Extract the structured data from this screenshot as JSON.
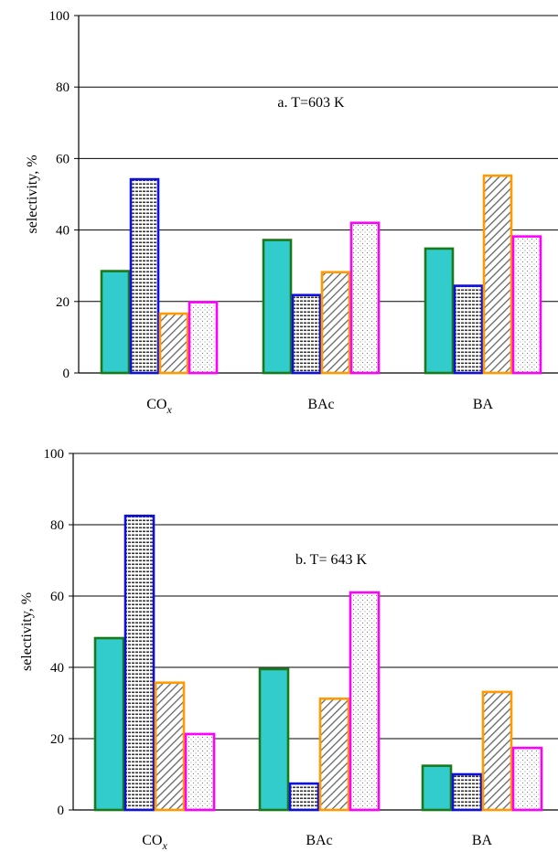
{
  "chart_data": [
    {
      "type": "bar",
      "annotation": "a.  T=603 K",
      "ylabel": "selectivity, %",
      "ylim": [
        0,
        100
      ],
      "yticks": [
        0,
        20,
        40,
        60,
        80,
        100
      ],
      "grid": true,
      "categories": [
        {
          "label": "CO",
          "sub": "x"
        },
        {
          "label": "BAc",
          "sub": ""
        },
        {
          "label": "BA",
          "sub": ""
        }
      ],
      "series": [
        {
          "values": [
            28.5,
            37.2,
            34.8
          ]
        },
        {
          "values": [
            54.2,
            21.8,
            24.4
          ]
        },
        {
          "values": [
            16.6,
            28.2,
            55.2
          ]
        },
        {
          "values": [
            19.8,
            42.0,
            38.2
          ]
        }
      ]
    },
    {
      "type": "bar",
      "annotation": "b. T= 643 K",
      "ylabel": "selectivity, %",
      "ylim": [
        0,
        100
      ],
      "yticks": [
        0,
        20,
        40,
        60,
        80,
        100
      ],
      "grid": true,
      "categories": [
        {
          "label": "CO",
          "sub": "x"
        },
        {
          "label": "BAc",
          "sub": ""
        },
        {
          "label": "BA",
          "sub": ""
        }
      ],
      "series": [
        {
          "values": [
            48.2,
            39.5,
            12.4
          ]
        },
        {
          "values": [
            82.5,
            7.4,
            10.0
          ]
        },
        {
          "values": [
            35.7,
            31.2,
            33.1
          ]
        },
        {
          "values": [
            21.3,
            61.0,
            17.4
          ]
        }
      ]
    }
  ],
  "series_style": [
    {
      "fill": "#33cccc",
      "stroke": "#1a7a1a",
      "pattern": "solid"
    },
    {
      "fill": "#ffffff",
      "stroke": "#1010dd",
      "pattern": "hlines"
    },
    {
      "fill": "#ffffff",
      "stroke": "#ff9a00",
      "pattern": "diag"
    },
    {
      "fill": "#ffffff",
      "stroke": "#ff00ff",
      "pattern": "dots"
    }
  ]
}
